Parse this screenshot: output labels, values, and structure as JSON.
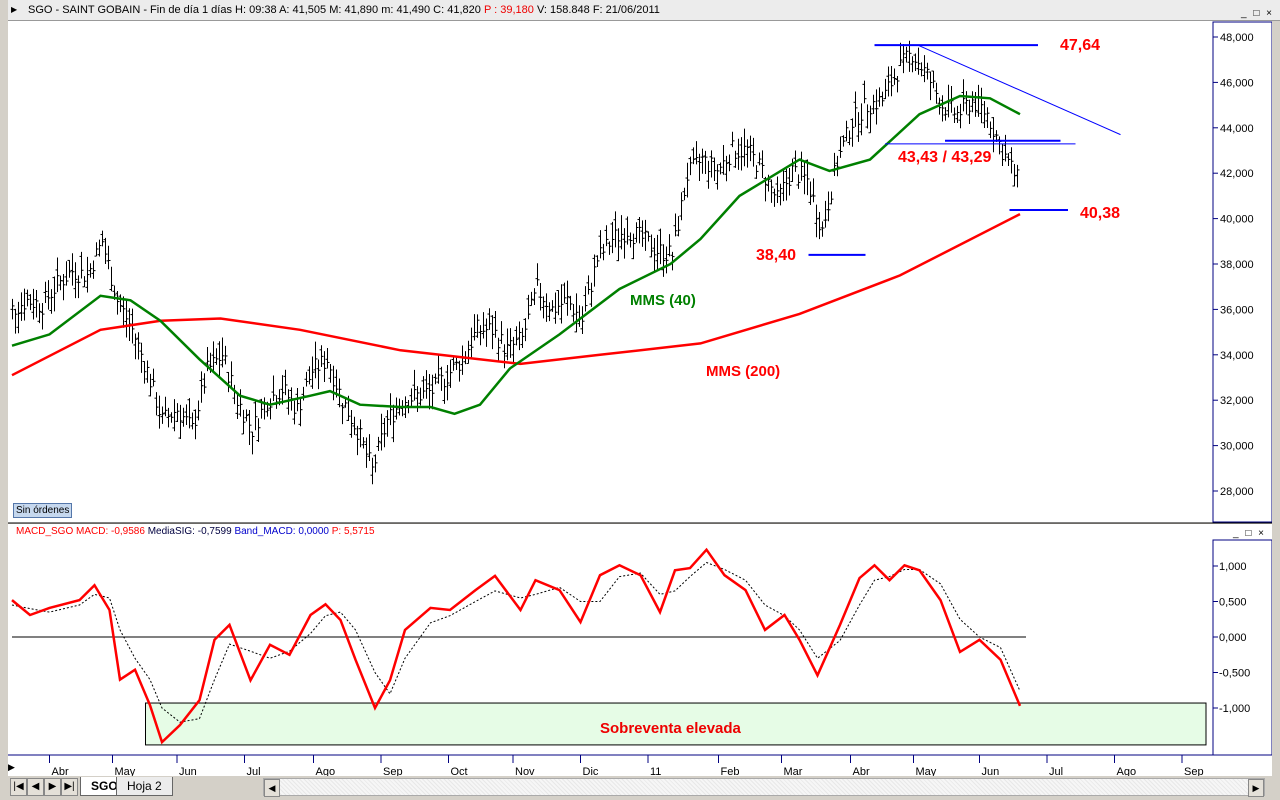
{
  "header": {
    "title": "SGO - SAINT GOBAIN - Fin de día 1 días  H: 09:38  A: 41,505  M: 41,890  m: 41,490  C: 41,820",
    "p_value": "P : 39,180",
    "tail": "V: 158.848  F: 21/06/2011"
  },
  "window_buttons": "_ □ ×",
  "sin_ordenes": "Sin órdenes",
  "macd_header": {
    "name": "MACD_SGO",
    "macd": "MACD: -0,9586",
    "signal": "MediaSIG: -0,7599",
    "band": "Band_MACD: 0,0000",
    "p": "P: 5,5715"
  },
  "tabs": {
    "first": "|◀",
    "prev": "◀",
    "next": "▶",
    "last": "▶|",
    "sheets": [
      "SGO",
      "Hoja 2"
    ]
  },
  "colors": {
    "price": "#000000",
    "mms40": "#008000",
    "mms200": "#ff0000",
    "annot": "#0000ff",
    "label": "#ff0000",
    "macd": "#ff0000",
    "zone": "#e6fce6"
  },
  "chart_data": [
    {
      "type": "ohlc",
      "title": "SGO - SAINT GOBAIN",
      "x_unit": "weeks",
      "ylim": [
        27,
        49.5
      ],
      "y_ticks": [
        28,
        30,
        32,
        34,
        36,
        38,
        40,
        42,
        44,
        46,
        48
      ],
      "y_tick_labels": [
        "28,000",
        "30,000",
        "32,000",
        "34,000",
        "36,000",
        "38,000",
        "40,000",
        "42,000",
        "44,000",
        "46,000",
        "48,000"
      ],
      "x_ticks": [
        {
          "label": "Abr",
          "w": 2.5
        },
        {
          "label": "May",
          "w": 6.7
        },
        {
          "label": "Jun",
          "w": 11
        },
        {
          "label": "Jul",
          "w": 15.5
        },
        {
          "label": "Ago",
          "w": 20.1
        },
        {
          "label": "Sep",
          "w": 24.6
        },
        {
          "label": "Oct",
          "w": 29.1
        },
        {
          "label": "Nov",
          "w": 33.4
        },
        {
          "label": "Dic",
          "w": 37.9
        },
        {
          "label": "11",
          "w": 42.4
        },
        {
          "label": "Feb",
          "w": 47.1
        },
        {
          "label": "Mar",
          "w": 51.3
        },
        {
          "label": "Abr",
          "w": 55.9
        },
        {
          "label": "May",
          "w": 60.1
        },
        {
          "label": "Jun",
          "w": 64.5
        },
        {
          "label": "Jul",
          "w": 69
        },
        {
          "label": "Ago",
          "w": 73.5
        },
        {
          "label": "Sep",
          "w": 78
        }
      ],
      "weekly_close": [
        36.0,
        36.4,
        36.2,
        37.1,
        37.7,
        37.5,
        39.0,
        36.4,
        35.1,
        33.3,
        31.1,
        31.6,
        30.7,
        33.3,
        34.0,
        32.0,
        30.7,
        32.0,
        32.5,
        31.6,
        33.3,
        33.8,
        32.0,
        30.7,
        28.9,
        31.1,
        32.0,
        32.2,
        32.4,
        33.1,
        33.8,
        35.1,
        35.1,
        34.2,
        34.7,
        36.9,
        36.0,
        36.4,
        35.5,
        38.2,
        39.1,
        39.5,
        39.1,
        38.6,
        38.4,
        41.9,
        42.6,
        42.1,
        43.0,
        43.0,
        42.1,
        40.8,
        42.1,
        41.7,
        39.5,
        42.5,
        44.3,
        45.0,
        45.2,
        46.5,
        47.3,
        46.3,
        45.0,
        44.6,
        45.2,
        44.6,
        43.0,
        41.7
      ],
      "series": [
        {
          "name": "MMS (40)",
          "points": [
            [
              0,
              34.4
            ],
            [
              2.5,
              34.9
            ],
            [
              5.9,
              36.6
            ],
            [
              7.9,
              36.4
            ],
            [
              9.9,
              35.5
            ],
            [
              12.5,
              33.8
            ],
            [
              15.2,
              32.2
            ],
            [
              17.2,
              31.8
            ],
            [
              19.9,
              32.2
            ],
            [
              21.2,
              32.4
            ],
            [
              23.2,
              31.8
            ],
            [
              25.9,
              31.7
            ],
            [
              27.9,
              31.7
            ],
            [
              29.5,
              31.4
            ],
            [
              31.2,
              31.8
            ],
            [
              33.2,
              33.4
            ],
            [
              36.5,
              34.9
            ],
            [
              40.5,
              36.9
            ],
            [
              43.9,
              38.0
            ],
            [
              45.9,
              39.1
            ],
            [
              48.5,
              41.0
            ],
            [
              52.5,
              42.6
            ],
            [
              54.5,
              42.1
            ],
            [
              57.2,
              42.6
            ],
            [
              60.5,
              44.6
            ],
            [
              63.2,
              45.4
            ],
            [
              65.2,
              45.3
            ],
            [
              67.2,
              44.6
            ]
          ]
        },
        {
          "name": "MMS (200)",
          "points": [
            [
              0,
              33.1
            ],
            [
              5.9,
              35.1
            ],
            [
              9.9,
              35.5
            ],
            [
              13.9,
              35.6
            ],
            [
              19.2,
              35.1
            ],
            [
              25.9,
              34.2
            ],
            [
              33.9,
              33.6
            ],
            [
              39.2,
              34.0
            ],
            [
              45.9,
              34.5
            ],
            [
              52.5,
              35.8
            ],
            [
              59.2,
              37.5
            ],
            [
              67.2,
              40.2
            ]
          ]
        }
      ],
      "annotations": {
        "levels": [
          {
            "label": "47,64",
            "value": 47.64,
            "from": 57.5,
            "to": 68.4
          },
          {
            "label": "43,43 / 43,29",
            "value": 43.43,
            "from": 62.2,
            "to": 69.9
          },
          {
            "value": 43.29,
            "from": 58.2,
            "to": 70.9
          },
          {
            "label": "40,38",
            "value": 40.38,
            "from": 66.5,
            "to": 70.4
          },
          {
            "label": "38,40",
            "value": 38.4,
            "from": 53.1,
            "to": 56.9
          }
        ],
        "trendline": [
          [
            60.4,
            47.64
          ],
          [
            73.9,
            43.7
          ]
        ]
      }
    },
    {
      "type": "line",
      "title": "MACD_SGO",
      "ylim": [
        -1.66,
        1.36
      ],
      "y_ticks": [
        1,
        0.5,
        0,
        -0.5,
        -1
      ],
      "y_tick_labels": [
        "1,000",
        "0,500",
        "0,000",
        "-0,500",
        "-1,000"
      ],
      "zero_line": 0,
      "zone": {
        "label": "Sobreventa elevada",
        "from": -0.93,
        "to": -1.52,
        "x_from": 8.9,
        "x_to": 79.6
      },
      "series": [
        {
          "name": "MACD",
          "points": [
            [
              0,
              0.52
            ],
            [
              1.2,
              0.31
            ],
            [
              2.5,
              0.41
            ],
            [
              4.5,
              0.52
            ],
            [
              5.5,
              0.73
            ],
            [
              6.5,
              0.38
            ],
            [
              7.2,
              -0.6
            ],
            [
              8.2,
              -0.46
            ],
            [
              9.2,
              -0.96
            ],
            [
              10,
              -1.48
            ],
            [
              11.2,
              -1.24
            ],
            [
              12.5,
              -0.89
            ],
            [
              13.5,
              -0.04
            ],
            [
              14.5,
              0.17
            ],
            [
              15.9,
              -0.61
            ],
            [
              17.2,
              -0.11
            ],
            [
              18.5,
              -0.25
            ],
            [
              19.9,
              0.31
            ],
            [
              20.9,
              0.46
            ],
            [
              21.9,
              0.24
            ],
            [
              22.9,
              -0.32
            ],
            [
              24.2,
              -1.0
            ],
            [
              25.2,
              -0.61
            ],
            [
              26.2,
              0.1
            ],
            [
              27.9,
              0.41
            ],
            [
              29.2,
              0.38
            ],
            [
              30.9,
              0.66
            ],
            [
              32.2,
              0.86
            ],
            [
              33.9,
              0.38
            ],
            [
              34.9,
              0.8
            ],
            [
              36.5,
              0.66
            ],
            [
              37.9,
              0.21
            ],
            [
              39.2,
              0.87
            ],
            [
              40.5,
              1.01
            ],
            [
              41.9,
              0.87
            ],
            [
              43.2,
              0.35
            ],
            [
              44.2,
              0.94
            ],
            [
              45.2,
              0.97
            ],
            [
              46.3,
              1.23
            ],
            [
              47.5,
              0.87
            ],
            [
              48.9,
              0.66
            ],
            [
              50.2,
              0.1
            ],
            [
              51.5,
              0.31
            ],
            [
              52.5,
              -0.04
            ],
            [
              53.7,
              -0.54
            ],
            [
              55.2,
              0.17
            ],
            [
              56.5,
              0.83
            ],
            [
              57.5,
              1.01
            ],
            [
              58.5,
              0.8
            ],
            [
              59.5,
              1.01
            ],
            [
              60.5,
              0.94
            ],
            [
              61.9,
              0.52
            ],
            [
              63.2,
              -0.21
            ],
            [
              64.5,
              -0.04
            ],
            [
              65.9,
              -0.32
            ],
            [
              67.2,
              -0.97
            ]
          ]
        },
        {
          "name": "MediaSIG",
          "points": [
            [
              0,
              0.45
            ],
            [
              1.2,
              0.4
            ],
            [
              2.5,
              0.35
            ],
            [
              4.5,
              0.45
            ],
            [
              5.5,
              0.6
            ],
            [
              6.5,
              0.55
            ],
            [
              7.2,
              0.1
            ],
            [
              8.2,
              -0.3
            ],
            [
              9.2,
              -0.6
            ],
            [
              10,
              -1.0
            ],
            [
              11.2,
              -1.2
            ],
            [
              12.5,
              -1.15
            ],
            [
              13.5,
              -0.6
            ],
            [
              14.5,
              -0.1
            ],
            [
              15.9,
              -0.2
            ],
            [
              17.2,
              -0.3
            ],
            [
              18.5,
              -0.2
            ],
            [
              19.9,
              0.05
            ],
            [
              20.9,
              0.3
            ],
            [
              21.9,
              0.35
            ],
            [
              22.9,
              0.1
            ],
            [
              24.2,
              -0.5
            ],
            [
              25.2,
              -0.8
            ],
            [
              26.2,
              -0.3
            ],
            [
              27.9,
              0.2
            ],
            [
              29.2,
              0.3
            ],
            [
              30.9,
              0.5
            ],
            [
              32.2,
              0.65
            ],
            [
              33.9,
              0.55
            ],
            [
              34.9,
              0.6
            ],
            [
              36.5,
              0.7
            ],
            [
              37.9,
              0.5
            ],
            [
              39.2,
              0.5
            ],
            [
              40.5,
              0.85
            ],
            [
              41.9,
              0.9
            ],
            [
              43.2,
              0.6
            ],
            [
              44.2,
              0.65
            ],
            [
              45.2,
              0.85
            ],
            [
              46.3,
              1.05
            ],
            [
              47.5,
              0.95
            ],
            [
              48.9,
              0.8
            ],
            [
              50.2,
              0.45
            ],
            [
              51.5,
              0.3
            ],
            [
              52.5,
              0.1
            ],
            [
              53.7,
              -0.3
            ],
            [
              55.2,
              -0.05
            ],
            [
              56.5,
              0.45
            ],
            [
              57.5,
              0.8
            ],
            [
              58.5,
              0.85
            ],
            [
              59.5,
              0.95
            ],
            [
              60.5,
              0.95
            ],
            [
              61.9,
              0.75
            ],
            [
              63.2,
              0.25
            ],
            [
              64.5,
              0.0
            ],
            [
              65.9,
              -0.15
            ],
            [
              67.2,
              -0.76
            ]
          ]
        }
      ]
    }
  ],
  "labels": {
    "mms40": "MMS (40)",
    "mms200": "MMS (200)"
  }
}
